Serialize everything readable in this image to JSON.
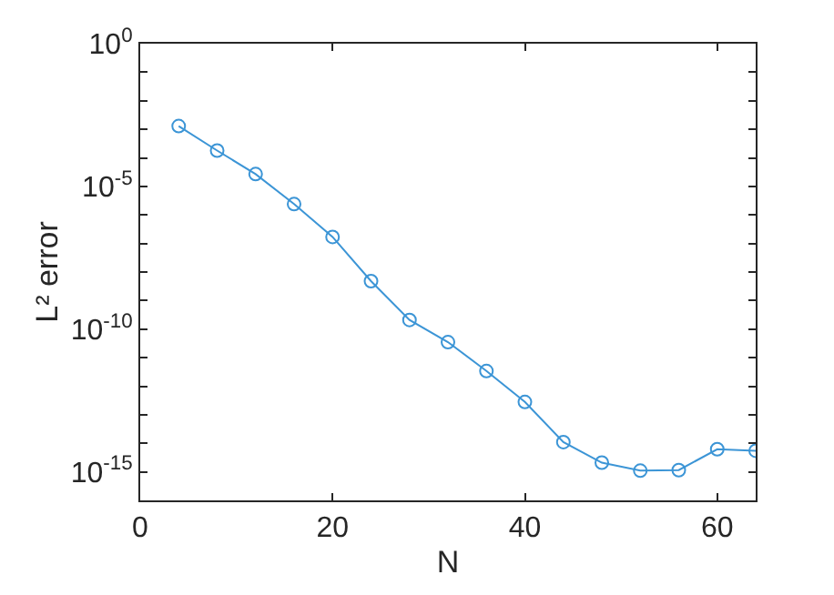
{
  "chart_data": {
    "type": "line",
    "xlabel": "N",
    "ylabel": "L² error",
    "x": [
      4,
      8,
      12,
      16,
      20,
      24,
      28,
      32,
      36,
      40,
      44,
      48,
      52,
      56,
      60,
      64
    ],
    "series": [
      {
        "color": "#3c95d6",
        "values": [
          0.0013,
          0.00018,
          2.7e-05,
          2.4e-06,
          1.7e-07,
          4.8e-09,
          2.1e-10,
          3.5e-11,
          3.4e-12,
          2.8e-13,
          1.1e-14,
          2.1e-15,
          1.1e-15,
          1.15e-15,
          6.2e-15,
          5.5e-15
        ]
      }
    ],
    "log": "y",
    "xlim": [
      0,
      64
    ],
    "xticks": [
      0,
      20,
      40,
      60
    ],
    "ylim": [
      1e-16,
      1
    ],
    "yticks": [
      {
        "value": 1,
        "label": "10$^{0}$"
      },
      {
        "value": 0.1,
        "label": null
      },
      {
        "value": 0.01,
        "label": null
      },
      {
        "value": 0.001,
        "label": null
      },
      {
        "value": 0.0001,
        "label": null
      },
      {
        "value": 1e-05,
        "label": "10$^{-5}$"
      },
      {
        "value": 1e-06,
        "label": null
      },
      {
        "value": 1e-07,
        "label": null
      },
      {
        "value": 1e-08,
        "label": null
      },
      {
        "value": 1e-09,
        "label": null
      },
      {
        "value": 1e-10,
        "label": "10$^{-10}$"
      },
      {
        "value": 1e-11,
        "label": null
      },
      {
        "value": 1e-12,
        "label": null
      },
      {
        "value": 1e-13,
        "label": null
      },
      {
        "value": 1e-14,
        "label": null
      },
      {
        "value": 1e-15,
        "label": "10$^{-15}$"
      },
      {
        "value": 1e-16,
        "label": null
      }
    ],
    "marker": "circle",
    "line_style": "solid"
  }
}
